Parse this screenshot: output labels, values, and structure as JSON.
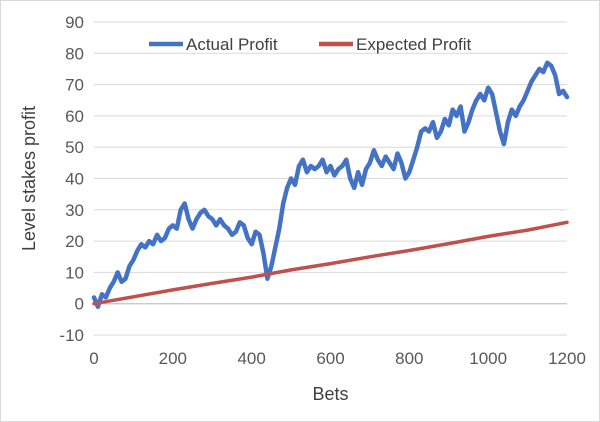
{
  "chart_data": {
    "type": "line",
    "title": "",
    "xlabel": "Bets",
    "ylabel": "Level stakes profit",
    "xlim": [
      0,
      1200
    ],
    "ylim": [
      -10,
      90
    ],
    "x_ticks": [
      0,
      200,
      400,
      600,
      800,
      1000,
      1200
    ],
    "y_ticks": [
      -10,
      0,
      10,
      20,
      30,
      40,
      50,
      60,
      70,
      80,
      90
    ],
    "grid": "horizontal",
    "legend_position": "top",
    "series": [
      {
        "name": "Actual Profit",
        "color": "#4472c4",
        "points": [
          [
            0,
            2
          ],
          [
            10,
            -1
          ],
          [
            20,
            3
          ],
          [
            30,
            2
          ],
          [
            40,
            5
          ],
          [
            50,
            7
          ],
          [
            60,
            10
          ],
          [
            70,
            7
          ],
          [
            80,
            8
          ],
          [
            90,
            12
          ],
          [
            100,
            14
          ],
          [
            110,
            17
          ],
          [
            120,
            19
          ],
          [
            130,
            18
          ],
          [
            140,
            20
          ],
          [
            150,
            19
          ],
          [
            160,
            22
          ],
          [
            170,
            20
          ],
          [
            180,
            21
          ],
          [
            190,
            24
          ],
          [
            200,
            25
          ],
          [
            210,
            24
          ],
          [
            220,
            30
          ],
          [
            230,
            32
          ],
          [
            240,
            27
          ],
          [
            250,
            24
          ],
          [
            260,
            27
          ],
          [
            270,
            29
          ],
          [
            280,
            30
          ],
          [
            290,
            28
          ],
          [
            300,
            27
          ],
          [
            310,
            25
          ],
          [
            320,
            27
          ],
          [
            330,
            25
          ],
          [
            340,
            24
          ],
          [
            350,
            22
          ],
          [
            360,
            23
          ],
          [
            370,
            26
          ],
          [
            380,
            25
          ],
          [
            390,
            21
          ],
          [
            400,
            19
          ],
          [
            410,
            23
          ],
          [
            420,
            22
          ],
          [
            430,
            16
          ],
          [
            440,
            8
          ],
          [
            450,
            12
          ],
          [
            460,
            18
          ],
          [
            470,
            24
          ],
          [
            480,
            32
          ],
          [
            490,
            37
          ],
          [
            500,
            40
          ],
          [
            510,
            38
          ],
          [
            520,
            44
          ],
          [
            530,
            46
          ],
          [
            540,
            42
          ],
          [
            550,
            44
          ],
          [
            560,
            43
          ],
          [
            570,
            44
          ],
          [
            580,
            46
          ],
          [
            590,
            42
          ],
          [
            600,
            44
          ],
          [
            610,
            41
          ],
          [
            620,
            43
          ],
          [
            630,
            44
          ],
          [
            640,
            46
          ],
          [
            650,
            40
          ],
          [
            660,
            37
          ],
          [
            670,
            42
          ],
          [
            680,
            38
          ],
          [
            690,
            43
          ],
          [
            700,
            45
          ],
          [
            710,
            49
          ],
          [
            720,
            46
          ],
          [
            730,
            44
          ],
          [
            740,
            47
          ],
          [
            750,
            45
          ],
          [
            760,
            43
          ],
          [
            770,
            48
          ],
          [
            780,
            45
          ],
          [
            790,
            40
          ],
          [
            800,
            42
          ],
          [
            810,
            46
          ],
          [
            820,
            50
          ],
          [
            830,
            55
          ],
          [
            840,
            56
          ],
          [
            850,
            55
          ],
          [
            860,
            58
          ],
          [
            870,
            53
          ],
          [
            880,
            55
          ],
          [
            890,
            59
          ],
          [
            900,
            57
          ],
          [
            910,
            62
          ],
          [
            920,
            60
          ],
          [
            930,
            63
          ],
          [
            940,
            55
          ],
          [
            950,
            58
          ],
          [
            960,
            62
          ],
          [
            970,
            65
          ],
          [
            980,
            67
          ],
          [
            990,
            65
          ],
          [
            1000,
            69
          ],
          [
            1010,
            67
          ],
          [
            1020,
            61
          ],
          [
            1030,
            55
          ],
          [
            1040,
            51
          ],
          [
            1050,
            58
          ],
          [
            1060,
            62
          ],
          [
            1070,
            60
          ],
          [
            1080,
            63
          ],
          [
            1090,
            65
          ],
          [
            1100,
            68
          ],
          [
            1110,
            71
          ],
          [
            1120,
            73
          ],
          [
            1130,
            75
          ],
          [
            1140,
            74
          ],
          [
            1150,
            77
          ],
          [
            1160,
            76
          ],
          [
            1170,
            73
          ],
          [
            1180,
            67
          ],
          [
            1190,
            68
          ],
          [
            1200,
            66
          ]
        ]
      },
      {
        "name": "Expected Profit",
        "color": "#c0504d",
        "points": [
          [
            0,
            0
          ],
          [
            100,
            2.2
          ],
          [
            200,
            4.4
          ],
          [
            300,
            6.5
          ],
          [
            400,
            8.5
          ],
          [
            500,
            10.8
          ],
          [
            600,
            12.8
          ],
          [
            700,
            15
          ],
          [
            800,
            17
          ],
          [
            900,
            19.2
          ],
          [
            1000,
            21.5
          ],
          [
            1100,
            23.5
          ],
          [
            1200,
            26
          ]
        ]
      }
    ]
  }
}
